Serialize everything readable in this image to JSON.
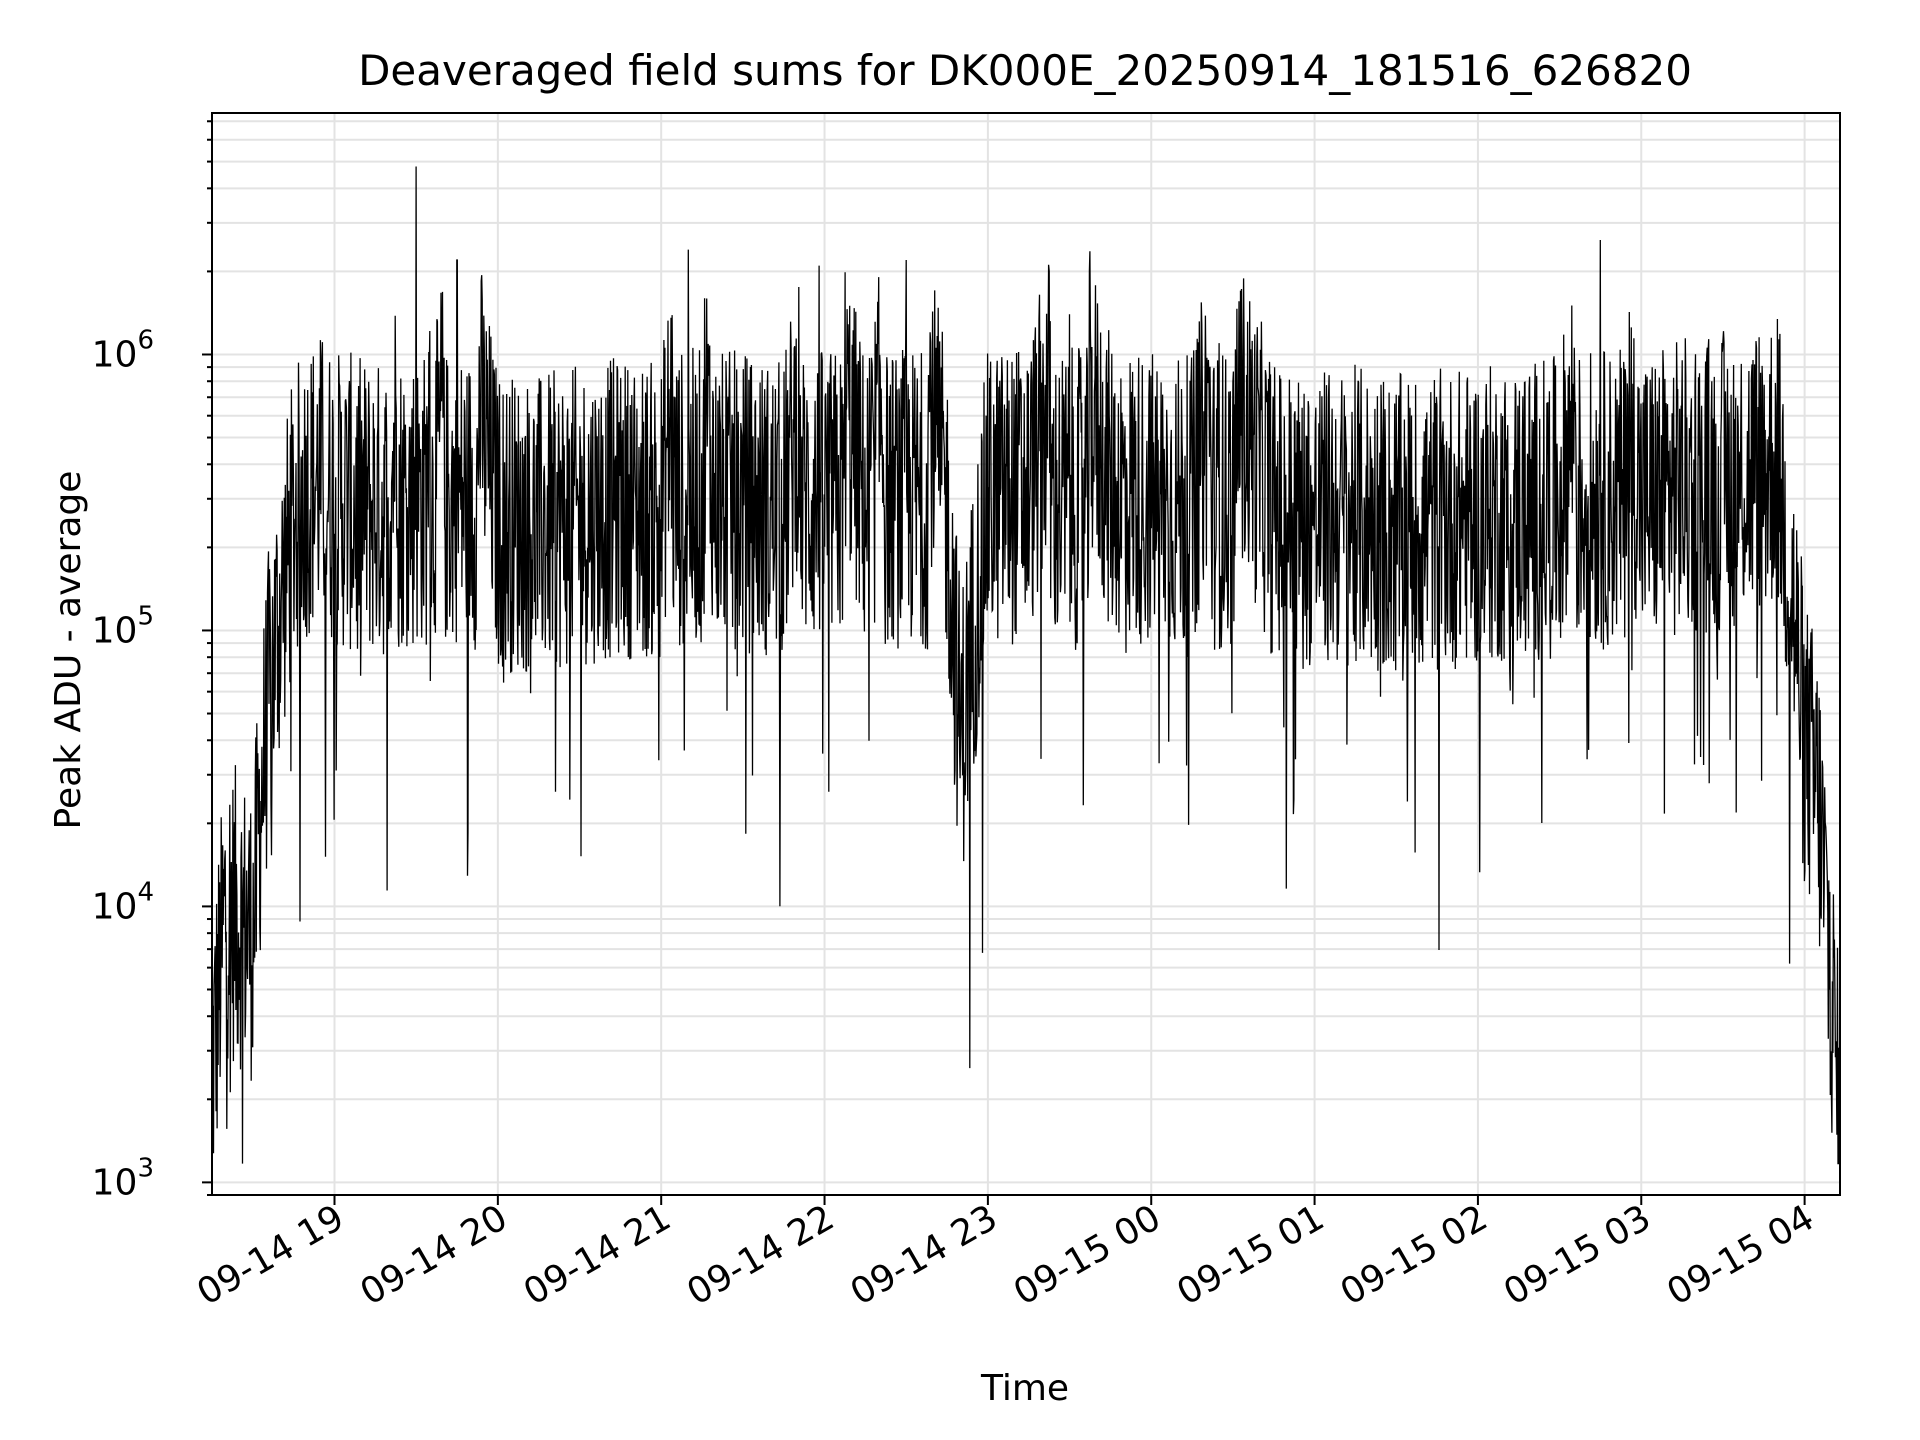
{
  "chart_data": {
    "type": "line",
    "title": "Deaveraged field sums for DK000E_20250914_181516_626820",
    "xlabel": "Time",
    "ylabel": "Peak ADU - average",
    "yscale": "log",
    "ylim": [
      900,
      7500000
    ],
    "xlim": [
      "2025-09-14 18:15",
      "2025-09-15 04:13"
    ],
    "grid": true,
    "grid_minor": true,
    "line_color": "#000000",
    "x_tick_labels": [
      "09-14 19",
      "09-14 20",
      "09-14 21",
      "09-14 22",
      "09-14 23",
      "09-15 00",
      "09-15 01",
      "09-15 02",
      "09-15 03",
      "09-15 04"
    ],
    "y_ticks": [
      {
        "base": "10",
        "exp": "3"
      },
      {
        "base": "10",
        "exp": "4"
      },
      {
        "base": "10",
        "exp": "5"
      },
      {
        "base": "10",
        "exp": "6"
      }
    ],
    "series": [
      {
        "x": [
          "2025-09-14 18:15",
          "2025-09-14 18:20",
          "2025-09-14 18:25",
          "2025-09-14 18:30",
          "2025-09-14 18:33",
          "2025-09-14 18:36",
          "2025-09-14 18:40",
          "2025-09-14 18:45",
          "2025-09-14 18:50",
          "2025-09-14 18:55",
          "2025-09-14 19:00",
          "2025-09-14 19:10",
          "2025-09-14 19:20",
          "2025-09-14 19:30",
          "2025-09-14 19:36",
          "2025-09-14 19:45",
          "2025-09-14 20:00",
          "2025-09-14 20:15",
          "2025-09-14 20:30",
          "2025-09-14 20:45",
          "2025-09-14 21:00",
          "2025-09-14 21:10",
          "2025-09-14 21:20",
          "2025-09-14 21:30",
          "2025-09-14 21:45",
          "2025-09-14 21:58",
          "2025-09-14 22:15",
          "2025-09-14 22:30",
          "2025-09-14 22:45",
          "2025-09-14 22:50",
          "2025-09-14 23:00",
          "2025-09-14 23:15",
          "2025-09-14 23:30",
          "2025-09-14 23:45",
          "2025-09-15 00:00",
          "2025-09-15 00:15",
          "2025-09-15 00:25",
          "2025-09-15 00:45",
          "2025-09-15 01:00",
          "2025-09-15 01:15",
          "2025-09-15 01:30",
          "2025-09-15 01:45",
          "2025-09-15 02:00",
          "2025-09-15 02:15",
          "2025-09-15 02:30",
          "2025-09-15 02:45",
          "2025-09-15 03:00",
          "2025-09-15 03:15",
          "2025-09-15 03:30",
          "2025-09-15 03:45",
          "2025-09-15 03:50",
          "2025-09-15 03:55",
          "2025-09-15 04:00",
          "2025-09-15 04:05",
          "2025-09-15 04:10",
          "2025-09-15 04:13"
        ],
        "y": [
          2500,
          10000,
          9000,
          8000,
          25000,
          60000,
          120000,
          250000,
          330000,
          350000,
          300000,
          280000,
          270000,
          4800000,
          260000,
          2200000,
          250000,
          240000,
          260000,
          280000,
          270000,
          2400000,
          300000,
          290000,
          270000,
          2100000,
          280000,
          2200000,
          270000,
          40000,
          300000,
          320000,
          1400000,
          330000,
          300000,
          280000,
          1100000,
          270000,
          250000,
          260000,
          240000,
          250000,
          260000,
          270000,
          280000,
          2600000,
          290000,
          330000,
          350000,
          380000,
          430000,
          150000,
          40000,
          25000,
          5000,
          1400
        ]
      }
    ]
  }
}
